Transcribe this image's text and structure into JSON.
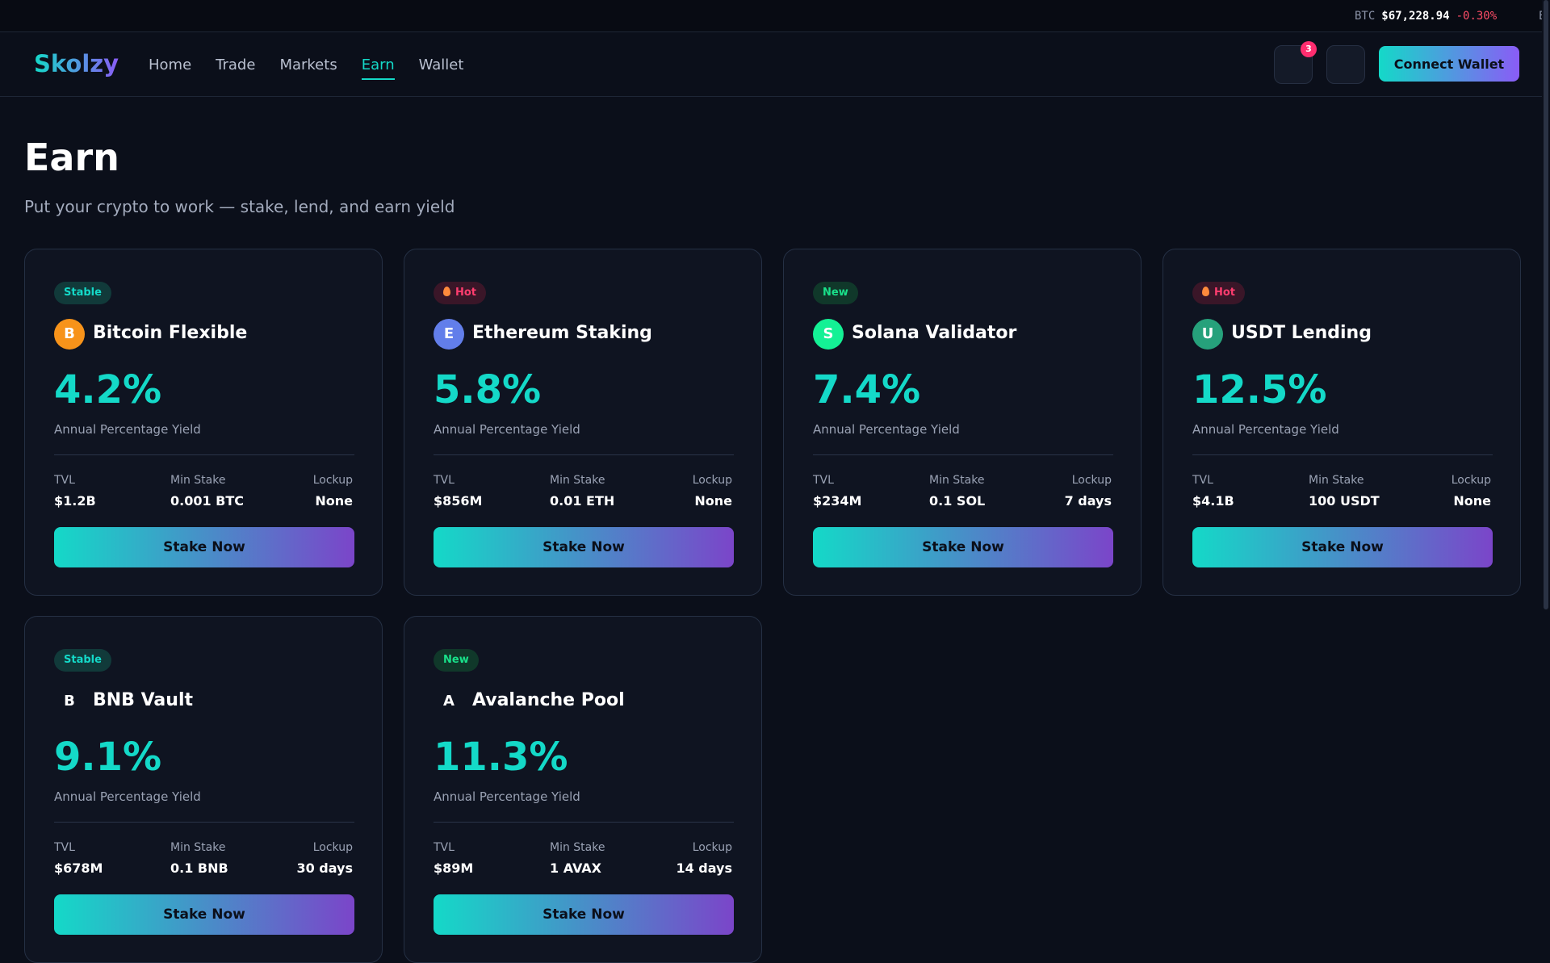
{
  "ticker": {
    "symbol": "BTC",
    "price": "$67,228.94",
    "change": "-0.30%",
    "next_fragment": "E"
  },
  "nav": {
    "logo": "Skolzy",
    "links": [
      "Home",
      "Trade",
      "Markets",
      "Earn",
      "Wallet"
    ],
    "active": "Earn",
    "notifications_count": "3",
    "connect_label": "Connect Wallet"
  },
  "page": {
    "title": "Earn",
    "subtitle": "Put your crypto to work — stake, lend, and earn yield"
  },
  "labels": {
    "apy": "Annual Percentage Yield",
    "tvl": "TVL",
    "min_stake": "Min Stake",
    "lockup": "Lockup",
    "stake_button": "Stake Now"
  },
  "cards": [
    {
      "tag": "Stable",
      "coin_letter": "B",
      "coin_color": "#f7931a",
      "name": "Bitcoin Flexible",
      "apy": "4.2%",
      "tvl": "$1.2B",
      "min_stake": "0.001 BTC",
      "lockup": "None"
    },
    {
      "tag": "Hot",
      "coin_letter": "E",
      "coin_color": "#627eea",
      "name": "Ethereum Staking",
      "apy": "5.8%",
      "tvl": "$856M",
      "min_stake": "0.01 ETH",
      "lockup": "None"
    },
    {
      "tag": "New",
      "coin_letter": "S",
      "coin_color": "#14f195",
      "name": "Solana Validator",
      "apy": "7.4%",
      "tvl": "$234M",
      "min_stake": "0.1 SOL",
      "lockup": "7 days"
    },
    {
      "tag": "Hot",
      "coin_letter": "U",
      "coin_color": "#26a17b",
      "name": "USDT Lending",
      "apy": "12.5%",
      "tvl": "$4.1B",
      "min_stake": "100 USDT",
      "lockup": "None"
    },
    {
      "tag": "Stable",
      "coin_letter": "B",
      "coin_color": "",
      "name": "BNB Vault",
      "apy": "9.1%",
      "tvl": "$678M",
      "min_stake": "0.1 BNB",
      "lockup": "30 days"
    },
    {
      "tag": "New",
      "coin_letter": "A",
      "coin_color": "",
      "name": "Avalanche Pool",
      "apy": "11.3%",
      "tvl": "$89M",
      "min_stake": "1 AVAX",
      "lockup": "14 days"
    }
  ]
}
